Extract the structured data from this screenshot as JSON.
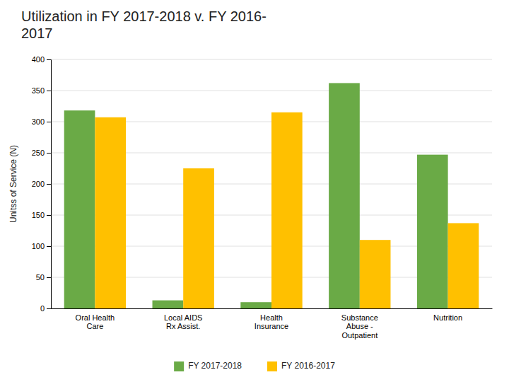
{
  "chart_data": {
    "type": "bar",
    "title": "Utilization in FY 2017-2018 v. FY 2016-\n2017",
    "ylabel": "Unitss of Service (N)",
    "categories": [
      "Oral Health\nCare",
      "Local AIDS\nRx Assist.",
      "Health\nInsurance",
      "Substance\nAbuse -\nOutpatient",
      "Nutrition"
    ],
    "series": [
      {
        "name": "FY 2017-2018",
        "color": "#6aaa46",
        "values": [
          318,
          13,
          10,
          362,
          247
        ]
      },
      {
        "name": "FY 2016-2017",
        "color": "#ffc000",
        "values": [
          307,
          225,
          315,
          110,
          137
        ]
      }
    ],
    "ylim": [
      0,
      400
    ],
    "yticks": [
      0,
      50,
      100,
      150,
      200,
      250,
      300,
      350,
      400
    ],
    "grid": true,
    "legend": "bottom"
  }
}
